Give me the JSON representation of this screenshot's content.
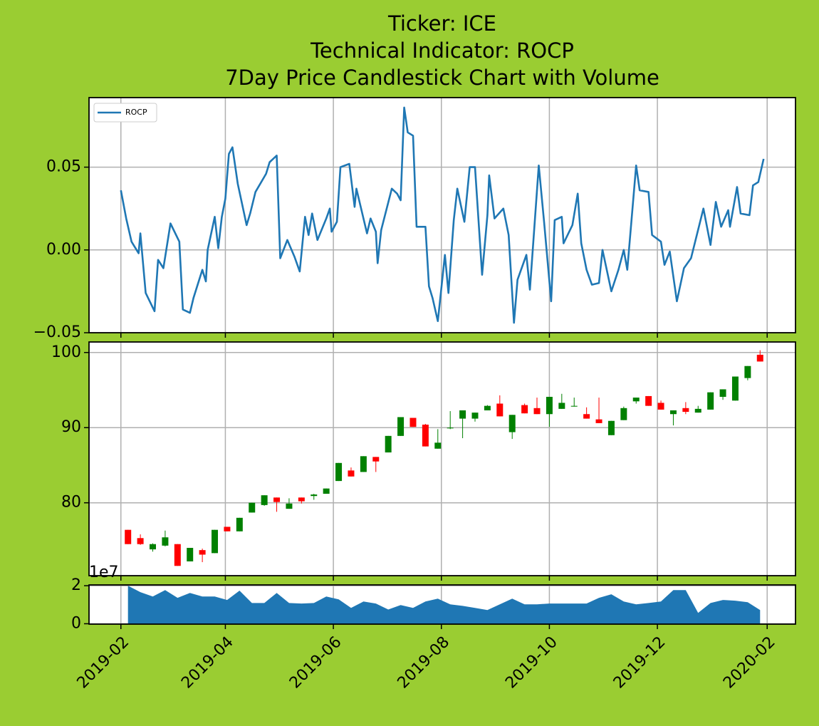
{
  "chart_data": [
    {
      "type": "line",
      "title": [
        "Ticker: ICE",
        "Technical Indicator: ROCP",
        "7Day Price Candlestick Chart with Volume"
      ],
      "x": [
        "2019-02-01",
        "2019-02-04",
        "2019-02-07",
        "2019-02-11",
        "2019-02-12",
        "2019-02-15",
        "2019-02-20",
        "2019-02-22",
        "2019-02-25",
        "2019-03-01",
        "2019-03-06",
        "2019-03-08",
        "2019-03-12",
        "2019-03-14",
        "2019-03-19",
        "2019-03-21",
        "2019-03-22",
        "2019-03-26",
        "2019-03-28",
        "2019-03-30",
        "2019-04-01",
        "2019-04-03",
        "2019-04-05",
        "2019-04-08",
        "2019-04-13",
        "2019-04-15",
        "2019-04-18",
        "2019-04-24",
        "2019-04-26",
        "2019-04-30",
        "2019-05-02",
        "2019-05-06",
        "2019-05-10",
        "2019-05-13",
        "2019-05-16",
        "2019-05-18",
        "2019-05-20",
        "2019-05-23",
        "2019-05-28",
        "2019-05-30",
        "2019-05-31",
        "2019-06-03",
        "2019-06-05",
        "2019-06-10",
        "2019-06-13",
        "2019-06-14",
        "2019-06-20",
        "2019-06-22",
        "2019-06-25",
        "2019-06-26",
        "2019-06-28",
        "2019-07-04",
        "2019-07-07",
        "2019-07-09",
        "2019-07-11",
        "2019-07-13",
        "2019-07-16",
        "2019-07-18",
        "2019-07-23",
        "2019-07-25",
        "2019-07-27",
        "2019-07-30",
        "2019-08-03",
        "2019-08-05",
        "2019-08-08",
        "2019-08-10",
        "2019-08-14",
        "2019-08-17",
        "2019-08-20",
        "2019-08-24",
        "2019-08-27",
        "2019-08-28",
        "2019-08-31",
        "2019-09-05",
        "2019-09-08",
        "2019-09-11",
        "2019-09-13",
        "2019-09-18",
        "2019-09-20",
        "2019-09-25",
        "2019-09-28",
        "2019-10-02",
        "2019-10-04",
        "2019-10-08",
        "2019-10-09",
        "2019-10-14",
        "2019-10-17",
        "2019-10-19",
        "2019-10-22",
        "2019-10-25",
        "2019-10-29",
        "2019-10-31",
        "2019-11-05",
        "2019-11-09",
        "2019-11-12",
        "2019-11-14",
        "2019-11-19",
        "2019-11-21",
        "2019-11-26",
        "2019-11-28",
        "2019-12-03",
        "2019-12-05",
        "2019-12-08",
        "2019-12-12",
        "2019-12-16",
        "2019-12-20",
        "2019-12-27",
        "2019-12-31",
        "2020-01-03",
        "2020-01-06",
        "2020-01-10",
        "2020-01-11",
        "2020-01-15",
        "2020-01-17",
        "2020-01-22",
        "2020-01-24",
        "2020-01-27",
        "2020-01-30"
      ],
      "series": [
        {
          "name": "ROCP",
          "color": "#1f77b4",
          "values": [
            0.036,
            0.019,
            0.005,
            -0.002,
            0.01,
            -0.026,
            -0.037,
            -0.006,
            -0.011,
            0.016,
            0.005,
            -0.036,
            -0.038,
            -0.029,
            -0.012,
            -0.019,
            0,
            0.02,
            0.001,
            0.02,
            0.031,
            0.058,
            0.062,
            0.04,
            0.015,
            0.022,
            0.035,
            0.046,
            0.053,
            0.057,
            -0.005,
            0.006,
            -0.004,
            -0.013,
            0.02,
            0.009,
            0.022,
            0.006,
            0.019,
            0.025,
            0.011,
            0.017,
            0.05,
            0.052,
            0.026,
            0.037,
            0.01,
            0.019,
            0.011,
            -0.008,
            0.012,
            0.037,
            0.034,
            0.03,
            0.086,
            0.071,
            0.069,
            0.014,
            0.014,
            -0.022,
            -0.029,
            -0.043,
            -0.003,
            -0.026,
            0.018,
            0.037,
            0.017,
            0.05,
            0.05,
            -0.015,
            0.021,
            0.045,
            0.019,
            0.025,
            0.009,
            -0.044,
            -0.018,
            -0.003,
            -0.024,
            0.051,
            0.017,
            -0.031,
            0.018,
            0.02,
            0.004,
            0.015,
            0.034,
            0.004,
            -0.012,
            -0.021,
            -0.02,
            0,
            -0.025,
            -0.012,
            0,
            -0.012,
            0.051,
            0.036,
            0.035,
            0.009,
            0.005,
            -0.009,
            -0.001,
            -0.031,
            -0.011,
            -0.005,
            0.025,
            0.003,
            0.029,
            0.014,
            0.024,
            0.014,
            0.038,
            0.022,
            0.021,
            0.039,
            0.041,
            0.055
          ]
        }
      ],
      "xlim": [
        "2019-01-14",
        "2020-02-17"
      ],
      "xticks": [
        "2019-02",
        "2019-04",
        "2019-06",
        "2019-08",
        "2019-10",
        "2019-12",
        "2020-02"
      ],
      "ylim": [
        -0.05,
        0.092
      ],
      "yticks": [
        {
          "value": -0.05,
          "label": "−0.05"
        },
        {
          "value": 0,
          "label": "0.00"
        },
        0.05
      ],
      "grid": true,
      "legend": "upper left"
    },
    {
      "type": "candlestick",
      "x": [
        "2019-02-05",
        "2019-02-12",
        "2019-02-19",
        "2019-02-26",
        "2019-03-05",
        "2019-03-12",
        "2019-03-19",
        "2019-03-26",
        "2019-04-02",
        "2019-04-09",
        "2019-04-16",
        "2019-04-23",
        "2019-04-30",
        "2019-05-07",
        "2019-05-14",
        "2019-05-21",
        "2019-05-28",
        "2019-06-04",
        "2019-06-11",
        "2019-06-18",
        "2019-06-25",
        "2019-07-02",
        "2019-07-09",
        "2019-07-16",
        "2019-07-23",
        "2019-07-30",
        "2019-08-06",
        "2019-08-13",
        "2019-08-20",
        "2019-08-27",
        "2019-09-03",
        "2019-09-10",
        "2019-09-17",
        "2019-09-24",
        "2019-10-01",
        "2019-10-08",
        "2019-10-15",
        "2019-10-22",
        "2019-10-29",
        "2019-11-05",
        "2019-11-12",
        "2019-11-19",
        "2019-11-26",
        "2019-12-03",
        "2019-12-10",
        "2019-12-17",
        "2019-12-24",
        "2019-12-31",
        "2020-01-07",
        "2020-01-14",
        "2020-01-21",
        "2020-01-28"
      ],
      "open": [
        76.4,
        75.3,
        73.8,
        74.3,
        74.5,
        72.2,
        73.7,
        73.3,
        76.8,
        76.2,
        78.7,
        79.7,
        80.7,
        79.2,
        80.7,
        80.9,
        81.2,
        82.9,
        84.3,
        84.1,
        86.1,
        86.7,
        88.9,
        91.3,
        90.4,
        87.2,
        89.9,
        91.2,
        91.2,
        92.3,
        93.2,
        89.4,
        93.0,
        92.6,
        91.8,
        92.5,
        92.8,
        91.8,
        91.1,
        89.0,
        91.0,
        93.5,
        94.2,
        93.3,
        91.8,
        92.6,
        92.0,
        92.4,
        94.1,
        93.6,
        96.6,
        99.7
      ],
      "high": [
        76.4,
        75.8,
        74.6,
        76.3,
        74.5,
        74.0,
        73.9,
        76.4,
        76.8,
        78.0,
        80.0,
        81.0,
        80.7,
        80.6,
        80.7,
        81.2,
        81.9,
        85.3,
        84.7,
        86.2,
        86.1,
        88.9,
        91.4,
        91.3,
        90.5,
        89.8,
        92.2,
        92.3,
        92.0,
        93.0,
        94.3,
        91.7,
        93.2,
        94.0,
        94.1,
        94.5,
        94.0,
        92.7,
        94.0,
        90.9,
        92.8,
        94.0,
        94.2,
        93.6,
        92.3,
        93.4,
        92.9,
        94.7,
        95.1,
        96.8,
        98.2,
        100.3
      ],
      "low": [
        74.5,
        74.4,
        73.5,
        74.2,
        71.6,
        72.2,
        72.1,
        73.3,
        76.2,
        76.2,
        78.7,
        79.6,
        78.8,
        79.2,
        79.9,
        80.4,
        81.2,
        82.9,
        83.5,
        84.1,
        84.1,
        86.7,
        88.9,
        90.1,
        87.5,
        87.2,
        89.8,
        88.6,
        90.8,
        92.3,
        91.5,
        88.5,
        91.9,
        91.8,
        90.1,
        92.5,
        92.8,
        91.2,
        90.6,
        89.0,
        91.0,
        93.2,
        92.9,
        92.4,
        90.3,
        91.8,
        92.0,
        92.4,
        93.7,
        93.6,
        96.3,
        98.8
      ],
      "close": [
        74.5,
        74.5,
        74.5,
        75.4,
        71.6,
        74.0,
        73.1,
        76.4,
        76.2,
        78.0,
        80.0,
        81.0,
        80.1,
        79.9,
        80.2,
        81.1,
        81.9,
        85.3,
        83.5,
        86.2,
        85.5,
        88.9,
        91.4,
        90.1,
        87.5,
        88.0,
        90.0,
        92.3,
        92.0,
        92.9,
        91.5,
        91.7,
        91.9,
        91.8,
        94.1,
        93.3,
        92.9,
        91.2,
        90.6,
        90.9,
        92.6,
        94.0,
        92.9,
        92.4,
        92.3,
        92.1,
        92.5,
        94.7,
        95.1,
        96.8,
        98.2,
        98.8
      ],
      "up_color": "green",
      "down_color": "red",
      "xlim": [
        "2019-01-14",
        "2020-02-17"
      ],
      "xticks": [
        "2019-02",
        "2019-04",
        "2019-06",
        "2019-08",
        "2019-10",
        "2019-12",
        "2020-02"
      ],
      "ylim": [
        70.3,
        101.4
      ],
      "yticks": [
        80,
        90,
        100
      ],
      "grid": true
    },
    {
      "type": "area",
      "x": [
        "2019-02-05",
        "2019-02-12",
        "2019-02-19",
        "2019-02-26",
        "2019-03-05",
        "2019-03-12",
        "2019-03-19",
        "2019-03-26",
        "2019-04-02",
        "2019-04-09",
        "2019-04-16",
        "2019-04-23",
        "2019-04-30",
        "2019-05-07",
        "2019-05-14",
        "2019-05-21",
        "2019-05-28",
        "2019-06-04",
        "2019-06-11",
        "2019-06-18",
        "2019-06-25",
        "2019-07-02",
        "2019-07-09",
        "2019-07-16",
        "2019-07-23",
        "2019-07-30",
        "2019-08-06",
        "2019-08-13",
        "2019-08-20",
        "2019-08-27",
        "2019-09-03",
        "2019-09-10",
        "2019-09-17",
        "2019-09-24",
        "2019-10-01",
        "2019-10-08",
        "2019-10-15",
        "2019-10-22",
        "2019-10-29",
        "2019-11-05",
        "2019-11-12",
        "2019-11-19",
        "2019-11-26",
        "2019-12-03",
        "2019-12-10",
        "2019-12-17",
        "2019-12-24",
        "2019-12-31",
        "2020-01-07",
        "2020-01-14",
        "2020-01-21",
        "2020-01-28"
      ],
      "values": [
        2.0,
        1.66,
        1.43,
        1.77,
        1.36,
        1.62,
        1.43,
        1.43,
        1.25,
        1.74,
        1.09,
        1.09,
        1.62,
        1.09,
        1.06,
        1.09,
        1.43,
        1.28,
        0.83,
        1.17,
        1.06,
        0.75,
        0.98,
        0.83,
        1.17,
        1.32,
        1.02,
        0.94,
        0.83,
        0.72,
        1.02,
        1.32,
        1.02,
        1.02,
        1.06,
        1.06,
        1.06,
        1.06,
        1.36,
        1.55,
        1.17,
        1.02,
        1.09,
        1.17,
        1.77,
        1.77,
        0.57,
        1.09,
        1.25,
        1.21,
        1.13,
        0.72
      ],
      "color": "#1f77b4",
      "offset_label": "1e7",
      "xlim": [
        "2019-01-14",
        "2020-02-17"
      ],
      "xticks": [
        "2019-02",
        "2019-04",
        "2019-06",
        "2019-08",
        "2019-10",
        "2019-12",
        "2020-02"
      ],
      "ylim": [
        -0.02,
        2.04
      ],
      "yticks": [
        0,
        2
      ],
      "grid": true
    }
  ]
}
